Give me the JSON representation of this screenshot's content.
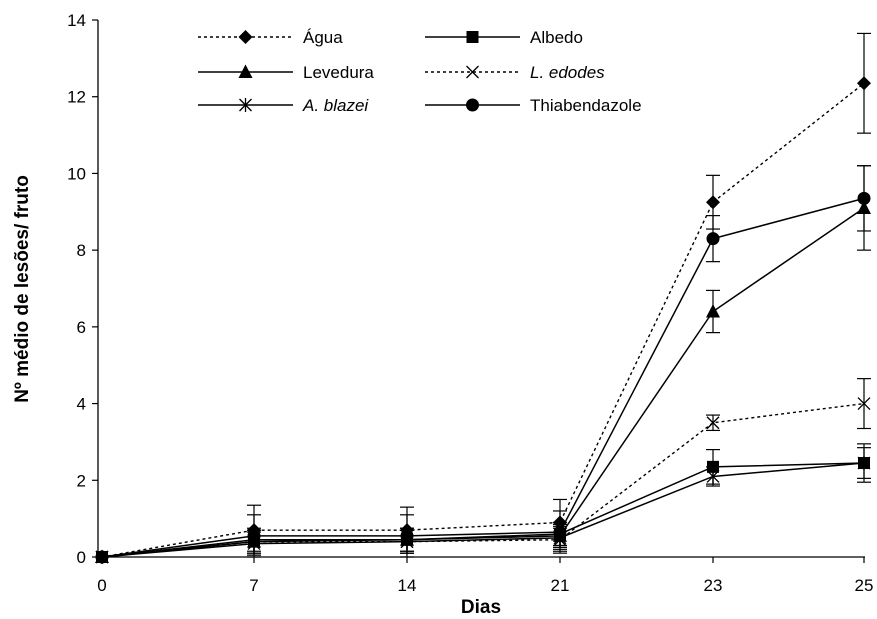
{
  "chart_data": {
    "type": "line",
    "xlabel": "Dias",
    "ylabel": "Nº médio de lesões/ fruto",
    "x": [
      0,
      7,
      14,
      21,
      23,
      25
    ],
    "ylim": [
      0,
      14
    ],
    "yticks": [
      0,
      2,
      4,
      6,
      8,
      10,
      12,
      14
    ],
    "grid": false,
    "legend_position": "top-left",
    "series": [
      {
        "name": "Água",
        "italic": false,
        "dash": "dotted",
        "marker": "diamond",
        "values": [
          0,
          0.7,
          0.7,
          0.9,
          9.25,
          12.35
        ],
        "errors": [
          0,
          0.65,
          0.6,
          0.6,
          0.7,
          1.3
        ]
      },
      {
        "name": "Albedo",
        "italic": false,
        "dash": "solid",
        "marker": "square",
        "values": [
          0,
          0.45,
          0.45,
          0.6,
          2.35,
          2.45
        ],
        "errors": [
          0,
          0.3,
          0.3,
          0.3,
          0.45,
          0.5
        ]
      },
      {
        "name": "Levedura",
        "italic": false,
        "dash": "solid",
        "marker": "triangle",
        "values": [
          0,
          0.4,
          0.45,
          0.55,
          6.4,
          9.1
        ],
        "errors": [
          0,
          0.3,
          0.3,
          0.3,
          0.55,
          1.1
        ]
      },
      {
        "name": "L. edodes",
        "italic": true,
        "dash": "dotted",
        "marker": "x",
        "values": [
          0,
          0.4,
          0.4,
          0.45,
          3.5,
          4.0
        ],
        "errors": [
          0,
          0.3,
          0.3,
          0.3,
          0.2,
          0.65
        ]
      },
      {
        "name": "A. blazei",
        "italic": true,
        "dash": "solid",
        "marker": "asterisk",
        "values": [
          0,
          0.35,
          0.4,
          0.5,
          2.1,
          2.45
        ],
        "errors": [
          0,
          0.3,
          0.3,
          0.3,
          0.25,
          0.4
        ]
      },
      {
        "name": "Thiabendazole",
        "italic": false,
        "dash": "solid",
        "marker": "circle",
        "values": [
          0,
          0.55,
          0.55,
          0.65,
          8.3,
          9.35
        ],
        "errors": [
          0,
          0.55,
          0.55,
          0.55,
          0.6,
          0.85
        ]
      }
    ]
  }
}
